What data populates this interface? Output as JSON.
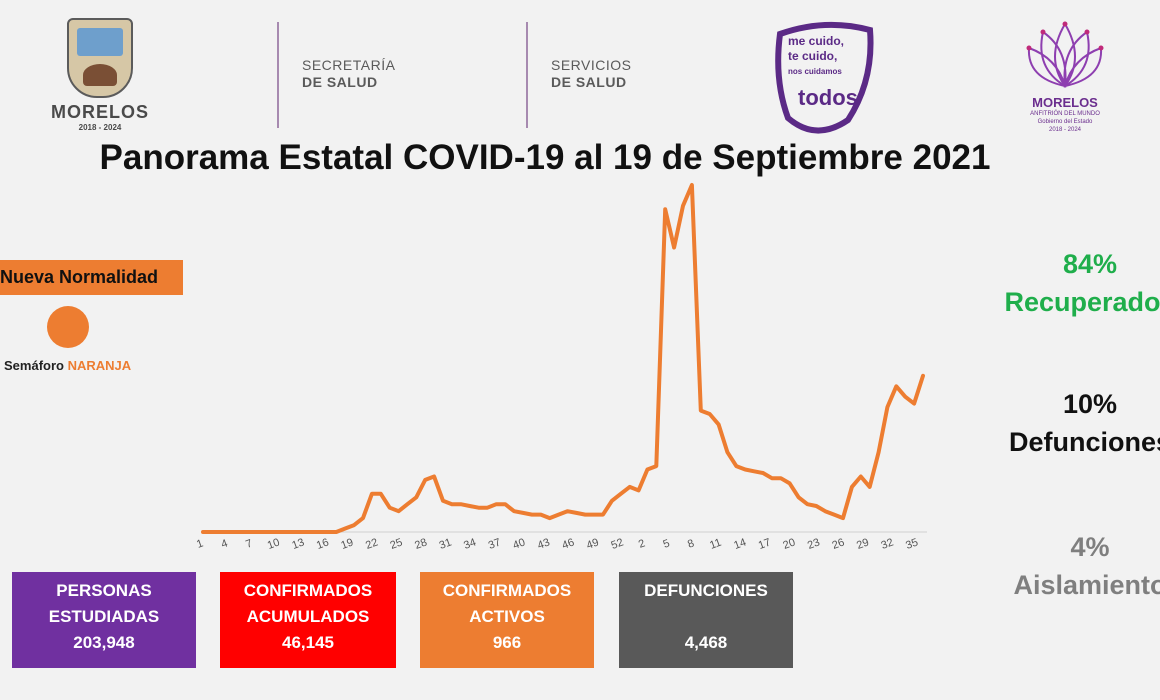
{
  "header": {
    "morelos_logo": {
      "name": "MORELOS",
      "years": "2018 - 2024"
    },
    "dept1": {
      "line1": "SECRETARÍA",
      "line2": "DE SALUD"
    },
    "dept2": {
      "line1": "SERVICIOS",
      "line2": "DE SALUD"
    },
    "slogan": {
      "line1": "me cuido,",
      "line2": "te cuido,",
      "line3": "nos cuidamos",
      "line4": "todos"
    },
    "gobierno_logo": {
      "name": "MORELOS",
      "sub1": "ANFITRIÓN DEL MUNDO",
      "sub2": "Gobierno del Estado",
      "sub3": "2018 - 2024"
    }
  },
  "title": "Panorama Estatal COVID-19 al 19 de Septiembre 2021",
  "status": {
    "label": "Nueva Normalidad",
    "semaforo_prefix": "Semáforo",
    "semaforo_value": "NARANJA",
    "color": "#ed7d31"
  },
  "stats": {
    "recuperados": {
      "pct": "84%",
      "label": "Recuperados",
      "color": "#1fae4b"
    },
    "defunciones": {
      "pct": "10%",
      "label": "Defunciones",
      "color": "#111111"
    },
    "aislamiento": {
      "pct": "4%",
      "label": "Aislamiento",
      "color": "#7f7f7f"
    }
  },
  "boxes": [
    {
      "line1": "PERSONAS",
      "line2": "ESTUDIADAS",
      "value": "203,948",
      "color": "#7030a0"
    },
    {
      "line1": "CONFIRMADOS",
      "line2": "ACUMULADOS",
      "value": "46,145",
      "color": "#ff0000"
    },
    {
      "line1": "CONFIRMADOS",
      "line2": "ACTIVOS",
      "value": "966",
      "color": "#ed7d31"
    },
    {
      "line1": "DEFUNCIONES",
      "line2": "",
      "value": "4,468",
      "color": "#595959"
    }
  ],
  "chart_data": {
    "type": "line",
    "title": "",
    "xlabel": "",
    "ylabel": "",
    "grid": false,
    "line_color": "#ed7d31",
    "ylim": [
      0,
      100
    ],
    "x_ticks": [
      "1",
      "4",
      "7",
      "10",
      "13",
      "16",
      "19",
      "22",
      "25",
      "28",
      "31",
      "34",
      "37",
      "40",
      "43",
      "46",
      "49",
      "52",
      "2",
      "5",
      "8",
      "11",
      "14",
      "17",
      "20",
      "23",
      "26",
      "29",
      "32",
      "35"
    ],
    "series": [
      {
        "values": [
          0,
          0,
          0,
          0,
          0,
          0,
          0,
          0,
          0,
          0,
          0,
          0,
          0,
          0,
          0,
          0,
          1,
          2,
          4,
          11,
          11,
          7,
          6,
          8,
          10,
          15,
          16,
          9,
          8,
          8,
          7.5,
          7,
          7,
          8,
          8,
          6,
          5.5,
          5,
          5,
          4,
          5,
          6,
          5.5,
          5,
          5,
          5,
          9,
          11,
          13,
          12,
          18,
          19,
          93,
          82,
          94,
          100,
          35,
          34,
          31,
          23,
          19,
          18,
          17.5,
          17,
          15.5,
          15.5,
          14,
          10,
          8,
          7.5,
          6,
          5,
          4,
          13,
          16,
          13,
          23,
          36,
          42,
          39,
          37,
          45
        ]
      }
    ]
  }
}
